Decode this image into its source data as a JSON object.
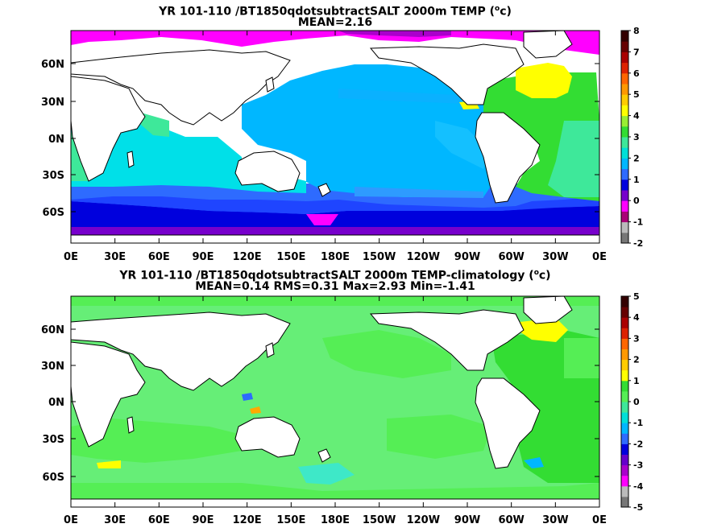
{
  "panels": [
    {
      "title_line1": "YR 101-110 /BT1850qdotsubtractSALT 2000m TEMP (",
      "title_unit_sup": "o",
      "title_unit_after": "c)",
      "title_line2": "MEAN=2.16",
      "colorbar_labels": [
        "8",
        "7",
        "6",
        "5",
        "4",
        "3",
        "2",
        "1",
        "0",
        "-1",
        "-2"
      ],
      "colorbar_colors": [
        "#777777",
        "#bbbbbb",
        "#aa0077",
        "#ff00ff",
        "#7700cc",
        "#0000dd",
        "#2e6bff",
        "#00b7ff",
        "#00e0d8",
        "#3ee89a",
        "#33dd33",
        "#99ee33",
        "#ffff00",
        "#ffcc00",
        "#ff9900",
        "#ff6600",
        "#dd2200",
        "#aa0000",
        "#660000",
        "#330000"
      ]
    },
    {
      "title_line1": "YR 101-110 /BT1850qdotsubtractSALT 2000m TEMP-climatology (",
      "title_unit_sup": "o",
      "title_unit_after": "c)",
      "title_line2": "MEAN=0.14   RMS=0.31   Max=2.93   Min=-1.41",
      "colorbar_labels": [
        "5",
        "4",
        "3",
        "2",
        "1",
        "0",
        "-1",
        "-2",
        "-3",
        "-4",
        "-5"
      ],
      "colorbar_colors": [
        "#777777",
        "#bbbbbb",
        "#ff00ff",
        "#aa00cc",
        "#6600cc",
        "#0000dd",
        "#2e6bff",
        "#00b7ff",
        "#00e0d8",
        "#3ee89a",
        "#55ee55",
        "#33dd33",
        "#ffff00",
        "#ffcc00",
        "#ff9900",
        "#ff6600",
        "#dd2200",
        "#aa0000",
        "#660000",
        "#330000"
      ]
    }
  ],
  "lon_labels": [
    "0E",
    "30E",
    "60E",
    "90E",
    "120E",
    "150E",
    "180E",
    "150W",
    "120W",
    "90W",
    "60W",
    "30W",
    "0E"
  ],
  "lat_labels": [
    "60N",
    "30N",
    "0N",
    "30S",
    "60S"
  ],
  "colors": {
    "pacific_deep": "#00b7ff",
    "indian": "#00e0e8",
    "southern": "#2e6bff",
    "atlantic": "#33dd33",
    "anomaly_green": "#66ee77",
    "yellow": "#ffff00"
  }
}
